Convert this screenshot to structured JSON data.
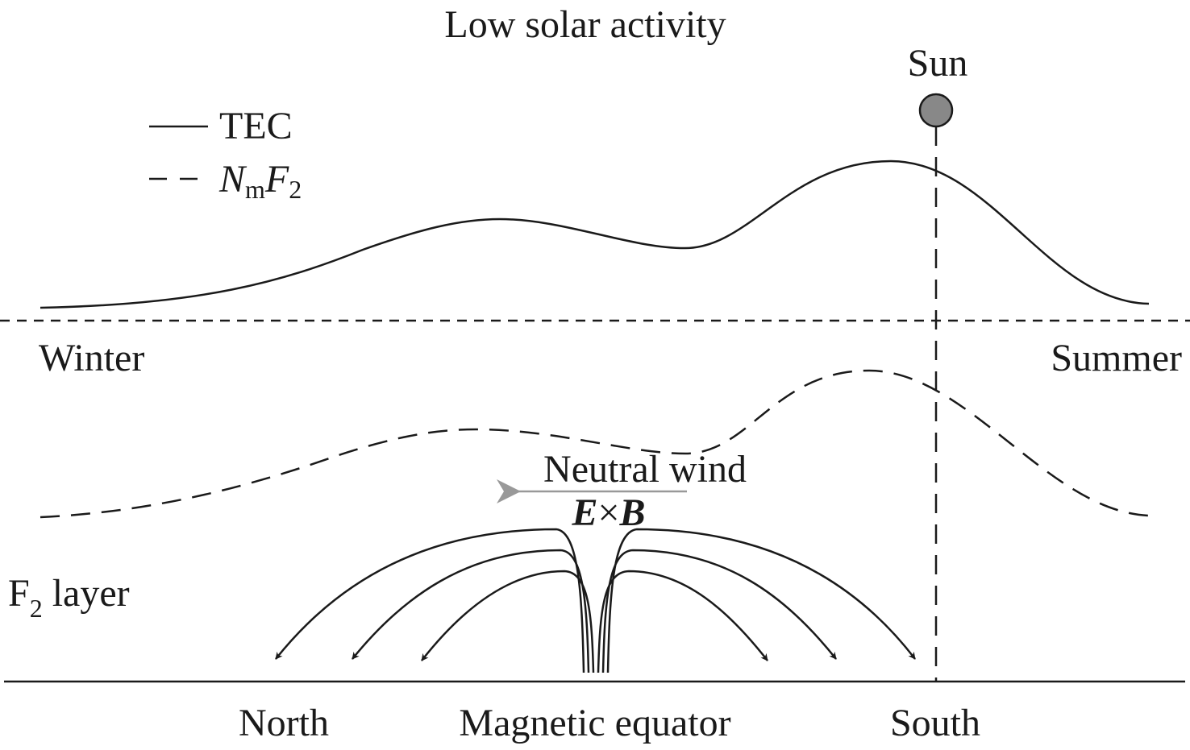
{
  "title": "Low solar activity",
  "sun": "Sun",
  "legend": {
    "solid": "TEC",
    "dashed": {
      "base": "N",
      "sub": "m",
      "base2": "F",
      "sub2": "2"
    }
  },
  "labels": {
    "winter": "Winter",
    "summer": "Summer"
  },
  "neutral_wind": "Neutral wind",
  "exb": {
    "e": "E",
    "times": "×",
    "b": "B"
  },
  "f2_layer": {
    "f": "F",
    "sub": "2",
    "rest": " layer"
  },
  "axis": {
    "north": "North",
    "equator": "Magnetic equator",
    "south": "South"
  }
}
